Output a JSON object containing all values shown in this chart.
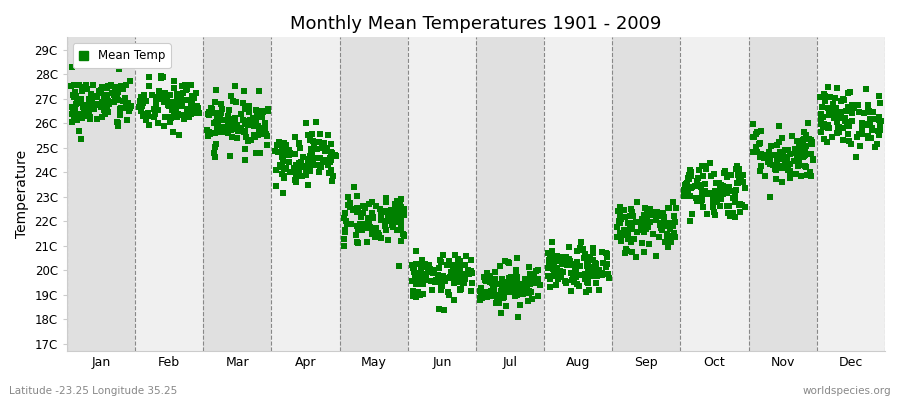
{
  "title": "Monthly Mean Temperatures 1901 - 2009",
  "ylabel": "Temperature",
  "xlabel_labels": [
    "Jan",
    "Feb",
    "Mar",
    "Apr",
    "May",
    "Jun",
    "Jul",
    "Aug",
    "Sep",
    "Oct",
    "Nov",
    "Dec"
  ],
  "ytick_labels": [
    "17C",
    "18C",
    "19C",
    "20C",
    "21C",
    "22C",
    "23C",
    "24C",
    "25C",
    "26C",
    "27C",
    "28C",
    "29C"
  ],
  "ytick_values": [
    17,
    18,
    19,
    20,
    21,
    22,
    23,
    24,
    25,
    26,
    27,
    28,
    29
  ],
  "ylim": [
    16.7,
    29.5
  ],
  "dot_color": "#008000",
  "marker": "s",
  "marker_size": 4,
  "background_color": "#ffffff",
  "band_colors_light": "#f0f0f0",
  "band_colors_dark": "#e0e0e0",
  "legend_label": "Mean Temp",
  "bottom_left_text": "Latitude -23.25 Longitude 35.25",
  "bottom_right_text": "worldspecies.org",
  "n_years": 109,
  "monthly_means": [
    26.8,
    26.7,
    26.0,
    24.6,
    22.1,
    19.7,
    19.4,
    20.0,
    21.8,
    23.3,
    24.7,
    26.2
  ],
  "monthly_stds": [
    0.55,
    0.55,
    0.55,
    0.55,
    0.55,
    0.45,
    0.45,
    0.45,
    0.55,
    0.6,
    0.6,
    0.6
  ],
  "seed": 42,
  "xlim_left": 0,
  "xlim_right": 12
}
